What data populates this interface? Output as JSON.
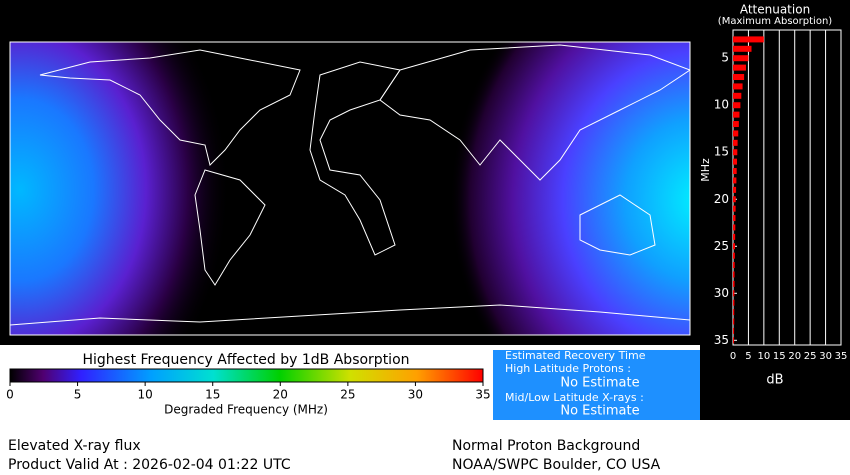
{
  "map": {
    "colorbar": {
      "title": "Highest Frequency Affected by 1dB Absorption",
      "xlabel": "Degraded Frequency (MHz)",
      "lim": [
        0,
        35
      ],
      "ticks": [
        0,
        5,
        10,
        15,
        20,
        25,
        30,
        35
      ]
    }
  },
  "recovery": {
    "title": "Estimated Recovery Time",
    "high_lat_label": "High Latitude Protons :",
    "high_lat_value": "No Estimate",
    "mid_lat_label": "Mid/Low Latitude X-rays :",
    "mid_lat_value": "No Estimate"
  },
  "chart_data": {
    "type": "bar",
    "title": "Attenuation",
    "subtitle": "(Maximum Absorption)",
    "x_label": "dB",
    "y_label": "MHz",
    "color": "#ff0000",
    "categories": [
      3,
      4,
      5,
      6,
      7,
      8,
      9,
      10,
      11,
      12,
      13,
      14,
      15,
      16,
      17,
      18,
      19,
      20,
      21,
      22,
      23,
      24,
      25,
      26,
      27,
      28,
      29,
      30,
      31,
      32,
      33,
      34,
      35
    ],
    "values": [
      10,
      6,
      5,
      4.2,
      3.6,
      3.1,
      2.7,
      2.4,
      2.1,
      1.9,
      1.7,
      1.5,
      1.4,
      1.3,
      1.2,
      1.1,
      1.0,
      0.9,
      0.85,
      0.8,
      0.75,
      0.7,
      0.65,
      0.6,
      0.55,
      0.5,
      0.5,
      0.45,
      0.45,
      0.4,
      0.4,
      0.35,
      0.35
    ],
    "xlim": [
      0,
      35
    ],
    "xticks": [
      0,
      5,
      10,
      15,
      20,
      25,
      30,
      35
    ],
    "ylim": [
      2,
      35.5
    ],
    "yticks": [
      5,
      10,
      15,
      20,
      25,
      30,
      35
    ],
    "grid": true
  },
  "footer": {
    "status": "Elevated X-ray flux",
    "valid": "Product Valid At : 2026-02-04 01:22 UTC",
    "proton": "Normal Proton Background",
    "source": "NOAA/SWPC Boulder, CO USA"
  }
}
